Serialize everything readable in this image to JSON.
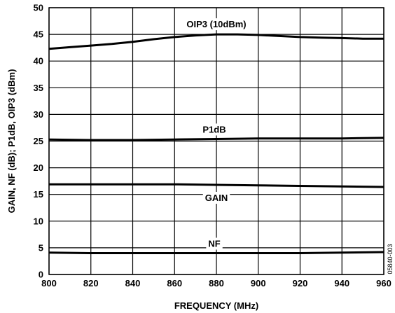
{
  "chart_data": {
    "type": "line",
    "xlabel": "FREQUENCY (MHz)",
    "ylabel": "GAIN, NF (dB); P1dB, OIP3 (dBm)",
    "xlim": [
      800,
      960
    ],
    "ylim": [
      0,
      50
    ],
    "xticks": [
      800,
      820,
      840,
      860,
      880,
      900,
      920,
      940,
      960
    ],
    "yticks": [
      0,
      5,
      10,
      15,
      20,
      25,
      30,
      35,
      40,
      45,
      50
    ],
    "grid": true,
    "figure_code": "05840-003",
    "series": [
      {
        "name": "OIP3 (10dBm)",
        "x": [
          800,
          810,
          820,
          830,
          840,
          850,
          860,
          870,
          880,
          890,
          900,
          910,
          920,
          930,
          940,
          950,
          960
        ],
        "y": [
          42.3,
          42.6,
          42.9,
          43.2,
          43.6,
          44.1,
          44.5,
          44.8,
          45.0,
          45.0,
          44.9,
          44.7,
          44.5,
          44.4,
          44.3,
          44.2,
          44.2
        ]
      },
      {
        "name": "P1dB",
        "x": [
          800,
          820,
          840,
          860,
          880,
          900,
          920,
          940,
          960
        ],
        "y": [
          25.3,
          25.2,
          25.2,
          25.3,
          25.4,
          25.5,
          25.5,
          25.5,
          25.6
        ]
      },
      {
        "name": "GAIN",
        "x": [
          800,
          820,
          840,
          860,
          880,
          900,
          920,
          940,
          960
        ],
        "y": [
          16.9,
          16.9,
          16.9,
          16.9,
          16.8,
          16.7,
          16.6,
          16.5,
          16.4
        ]
      },
      {
        "name": "NF",
        "x": [
          800,
          820,
          840,
          860,
          880,
          900,
          920,
          940,
          960
        ],
        "y": [
          4.1,
          4.0,
          4.0,
          4.0,
          4.0,
          4.0,
          4.0,
          4.1,
          4.2
        ]
      }
    ]
  }
}
